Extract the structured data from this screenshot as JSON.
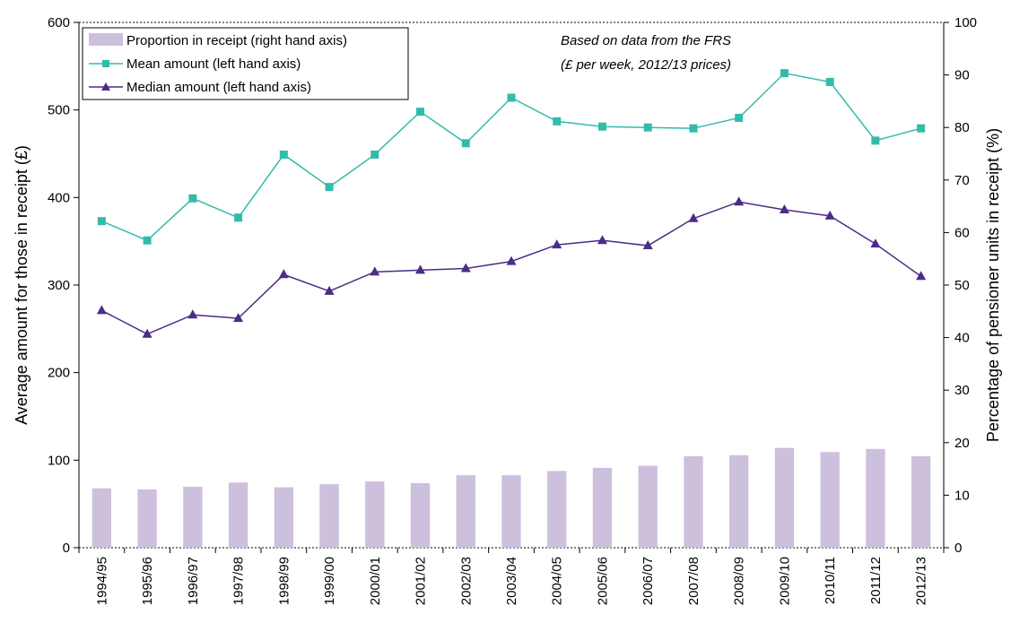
{
  "chart_data": {
    "type": "bar+line",
    "categories": [
      "1994/95",
      "1995/96",
      "1996/97",
      "1997/98",
      "1998/99",
      "1999/00",
      "2000/01",
      "2001/02",
      "2002/03",
      "2003/04",
      "2004/05",
      "2005/06",
      "2006/07",
      "2007/08",
      "2008/09",
      "2009/10",
      "2010/11",
      "2011/12",
      "2012/13"
    ],
    "series": [
      {
        "name": "Proportion in receipt (right hand axis)",
        "type": "bar",
        "axis": "right",
        "color": "#ccc0dd",
        "values": [
          11.3,
          11.1,
          11.6,
          12.4,
          11.5,
          12.1,
          12.6,
          12.3,
          13.8,
          13.8,
          14.6,
          15.2,
          15.6,
          17.4,
          17.6,
          19.0,
          18.2,
          18.8,
          17.4
        ]
      },
      {
        "name": "Mean amount (left hand axis)",
        "type": "line",
        "marker": "square",
        "axis": "left",
        "color": "#33bbaa",
        "values": [
          373,
          351,
          399,
          377,
          449,
          412,
          449,
          498,
          462,
          514,
          487,
          481,
          480,
          479,
          491,
          542,
          532,
          465,
          479
        ]
      },
      {
        "name": "Median amount (left hand axis)",
        "type": "line",
        "marker": "triangle",
        "axis": "left",
        "color": "#4b2c86",
        "values": [
          271,
          244,
          266,
          262,
          312,
          293,
          315,
          317,
          319,
          327,
          346,
          351,
          345,
          376,
          395,
          386,
          379,
          347,
          310
        ]
      }
    ],
    "ylabel": "Average amount for those in receipt (£)",
    "y2label": "Percentage of pensioner units in receipt (%)",
    "ylim": [
      0,
      600
    ],
    "yticks": [
      0,
      100,
      200,
      300,
      400,
      500,
      600
    ],
    "y2lim": [
      0,
      100
    ],
    "y2ticks": [
      0,
      10,
      20,
      30,
      40,
      50,
      60,
      70,
      80,
      90,
      100
    ],
    "annotation": [
      "Based on data from the FRS",
      "(£ per week, 2012/13 prices)"
    ],
    "legend_position": "top-left",
    "grid": false
  }
}
